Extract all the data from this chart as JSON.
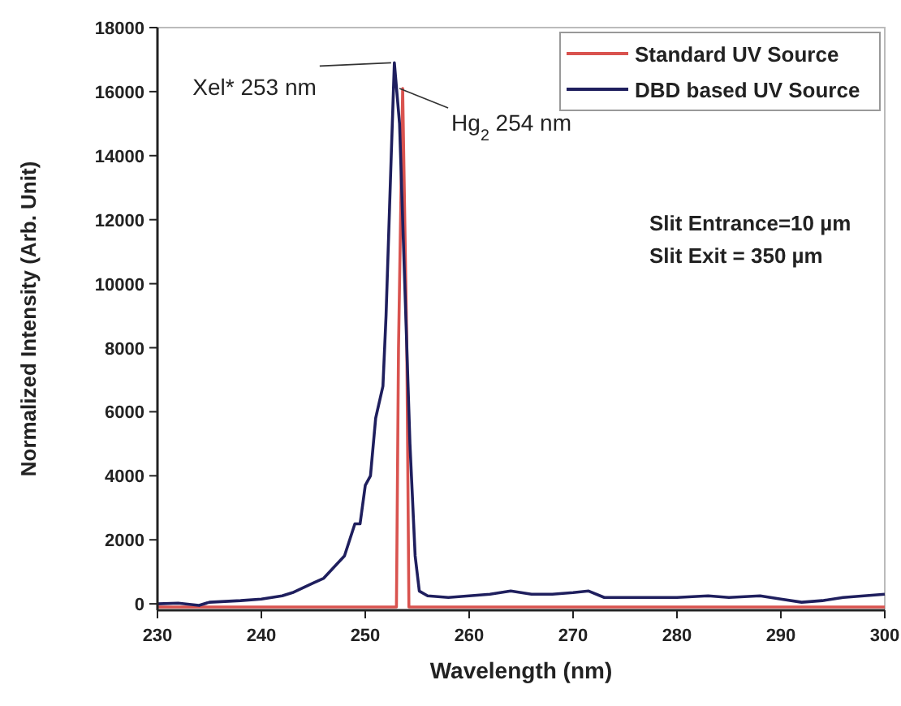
{
  "chart_data": {
    "type": "line",
    "xlabel": "Wavelength (nm)",
    "ylabel": "Normalized Intensity (Arb. Unit)",
    "xlim": [
      230,
      300
    ],
    "xticks": [
      230,
      240,
      250,
      260,
      270,
      280,
      290,
      300
    ],
    "ylim": [
      -200,
      18000
    ],
    "yticks": [
      0,
      2000,
      4000,
      6000,
      8000,
      10000,
      12000,
      14000,
      16000,
      18000
    ],
    "grid": false,
    "legend": "top right",
    "marker": "none",
    "line_style": "solid",
    "series": [
      {
        "name": "Standard UV Source",
        "color": "#d9534f",
        "x": [
          230,
          253.0,
          253.2,
          253.6,
          254.0,
          254.2,
          300
        ],
        "values": [
          -100,
          -100,
          8000,
          16100,
          8000,
          -100,
          -100
        ]
      },
      {
        "name": "DBD based UV Source",
        "color": "#1f1f5e",
        "x": [
          230,
          232,
          234,
          235,
          238,
          240,
          242,
          243,
          244,
          245,
          246,
          247,
          248,
          249,
          249.5,
          250,
          250.5,
          251,
          251.7,
          252,
          252.5,
          252.8,
          253.3,
          253.8,
          254.3,
          254.8,
          255.2,
          256,
          258,
          260,
          262,
          264,
          266,
          268,
          270,
          271.5,
          273,
          275,
          278,
          280,
          283,
          285,
          288,
          290,
          292,
          294,
          296,
          298,
          300
        ],
        "values": [
          0,
          20,
          -50,
          50,
          100,
          150,
          250,
          350,
          500,
          650,
          800,
          1150,
          1500,
          2500,
          2500,
          3700,
          4000,
          5800,
          6800,
          9000,
          14000,
          16900,
          15000,
          10000,
          5000,
          1500,
          400,
          250,
          200,
          250,
          300,
          400,
          300,
          300,
          350,
          400,
          200,
          200,
          200,
          200,
          250,
          200,
          250,
          150,
          50,
          100,
          200,
          250,
          300
        ]
      }
    ],
    "annotations": [
      {
        "text": "Xel* 253 nm",
        "x": 252.8,
        "y": 16900
      },
      {
        "text": "Hg$_{2}$ 254 nm",
        "x": 253.6,
        "y": 16100
      },
      "Slit Entrance=10 µm",
      "Slit Exit = 350 µm"
    ]
  }
}
